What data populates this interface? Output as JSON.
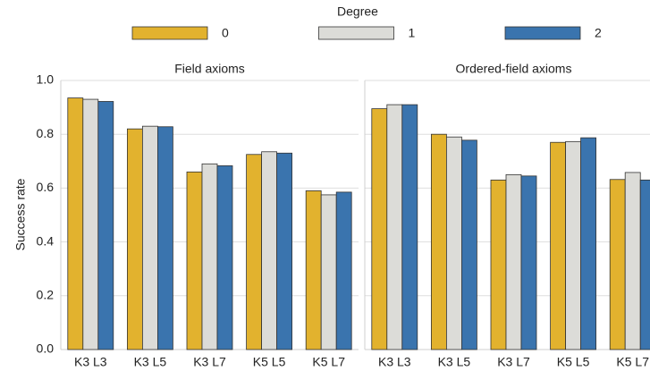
{
  "chart_data": [
    {
      "type": "bar",
      "title": "Field axioms",
      "legend_title": "Degree",
      "y_label": "Success rate",
      "categories": [
        "K3 L3",
        "K3 L5",
        "K3 L7",
        "K5 L5",
        "K5 L7"
      ],
      "series": [
        {
          "name": "0",
          "color": "#e2b22e",
          "values": [
            0.935,
            0.82,
            0.66,
            0.725,
            0.59
          ]
        },
        {
          "name": "1",
          "color": "#dcdcd8",
          "values": [
            0.93,
            0.83,
            0.69,
            0.735,
            0.575
          ]
        },
        {
          "name": "2",
          "color": "#3a74ae",
          "values": [
            0.922,
            0.828,
            0.683,
            0.73,
            0.585
          ]
        }
      ],
      "ylim": [
        0,
        1
      ],
      "yticks": [
        {
          "value": 0,
          "label": "0.0"
        },
        0.2,
        0.4,
        0.6,
        0.8,
        {
          "value": 1,
          "label": "1.0"
        }
      ],
      "grid": true
    },
    {
      "type": "bar",
      "title": "Ordered-field axioms",
      "categories": [
        "K3 L3",
        "K3 L5",
        "K3 L7",
        "K5 L5",
        "K5 L7"
      ],
      "series": [
        {
          "color": "#e2b22e",
          "values": [
            0.895,
            0.8,
            0.63,
            0.77,
            0.632
          ]
        },
        {
          "color": "#dcdcd8",
          "values": [
            0.91,
            0.79,
            0.65,
            0.773,
            0.658
          ]
        },
        {
          "color": "#3a74ae",
          "values": [
            0.91,
            0.778,
            0.645,
            0.787,
            0.63
          ]
        }
      ],
      "ylim": [
        0,
        1
      ],
      "yticks": [
        0,
        0.2,
        0.4,
        0.6,
        0.8,
        1
      ],
      "grid": true
    }
  ]
}
